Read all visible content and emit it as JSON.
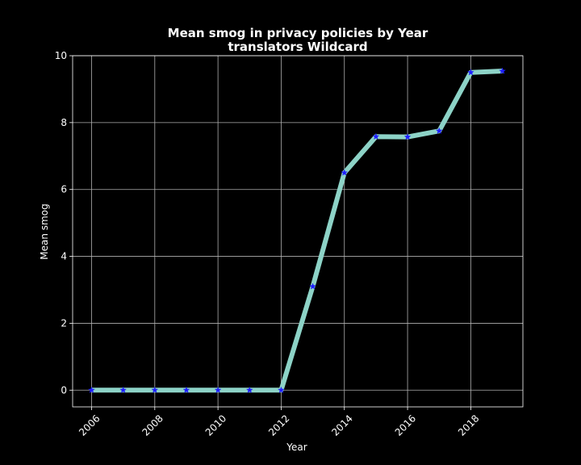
{
  "chart_data": {
    "type": "line",
    "title": "Mean smog in privacy policies by Year",
    "subtitle": "translators Wildcard",
    "xlabel": "Year",
    "ylabel": "Mean smog",
    "x": [
      2006,
      2007,
      2008,
      2009,
      2010,
      2011,
      2012,
      2013,
      2014,
      2015,
      2016,
      2017,
      2018,
      2019
    ],
    "series": [
      {
        "values": [
          0,
          0,
          0,
          0,
          0,
          0,
          0,
          3.1,
          6.5,
          7.58,
          7.57,
          7.75,
          9.5,
          9.54
        ]
      }
    ],
    "xlim": [
      2005.4,
      2019.65
    ],
    "ylim": [
      -0.5,
      10
    ],
    "xticks": [
      2006,
      2008,
      2010,
      2012,
      2014,
      2016,
      2018
    ],
    "yticks": [
      0,
      2,
      4,
      6,
      8,
      10
    ],
    "grid": true,
    "legend": "none",
    "colors": {
      "background": "#000000",
      "line": "#8dd3c7",
      "marker": "#1f1fff",
      "grid": "#b0b0b0",
      "text": "#ffffff"
    }
  }
}
